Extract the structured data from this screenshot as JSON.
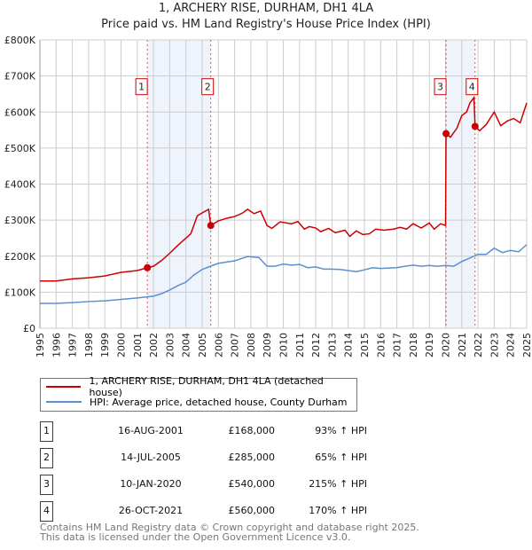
{
  "chart_data": {
    "type": "line",
    "title": "1, ARCHERY RISE, DURHAM, DH1 4LA",
    "subtitle": "Price paid vs. HM Land Registry's House Price Index (HPI)",
    "xlim": [
      1995,
      2025
    ],
    "ylim": [
      0,
      800000
    ],
    "y_ticks": [
      {
        "v": 0,
        "label": "£0"
      },
      {
        "v": 100000,
        "label": "£100K"
      },
      {
        "v": 200000,
        "label": "£200K"
      },
      {
        "v": 300000,
        "label": "£300K"
      },
      {
        "v": 400000,
        "label": "£400K"
      },
      {
        "v": 500000,
        "label": "£500K"
      },
      {
        "v": 600000,
        "label": "£600K"
      },
      {
        "v": 700000,
        "label": "£700K"
      },
      {
        "v": 800000,
        "label": "£800K"
      }
    ],
    "x_ticks": [
      "1995",
      "1996",
      "1997",
      "1998",
      "1999",
      "2000",
      "2001",
      "2002",
      "2003",
      "2004",
      "2005",
      "2006",
      "2007",
      "2008",
      "2009",
      "2010",
      "2011",
      "2012",
      "2013",
      "2014",
      "2015",
      "2016",
      "2017",
      "2018",
      "2019",
      "2020",
      "2021",
      "2022",
      "2023",
      "2024",
      "2025"
    ],
    "grid": true,
    "series": [
      {
        "name": "1, ARCHERY RISE, DURHAM, DH1 4LA (detached house)",
        "color": "#cc0000",
        "points": [
          [
            1995,
            131
          ],
          [
            1996,
            131
          ],
          [
            1997,
            137
          ],
          [
            1998,
            140
          ],
          [
            1999,
            145
          ],
          [
            2000,
            155
          ],
          [
            2001,
            160
          ],
          [
            2001.62,
            168
          ],
          [
            2002,
            172
          ],
          [
            2002.5,
            188
          ],
          [
            2003,
            208
          ],
          [
            2003.5,
            230
          ],
          [
            2004,
            250
          ],
          [
            2004.3,
            262
          ],
          [
            2004.7,
            312
          ],
          [
            2005,
            320
          ],
          [
            2005.4,
            330
          ],
          [
            2005.53,
            285
          ],
          [
            2006,
            298
          ],
          [
            2006.5,
            305
          ],
          [
            2007,
            310
          ],
          [
            2007.5,
            320
          ],
          [
            2007.8,
            330
          ],
          [
            2008.2,
            318
          ],
          [
            2008.6,
            325
          ],
          [
            2009,
            285
          ],
          [
            2009.3,
            277
          ],
          [
            2009.8,
            295
          ],
          [
            2010.5,
            290
          ],
          [
            2010.9,
            296
          ],
          [
            2011.3,
            275
          ],
          [
            2011.6,
            282
          ],
          [
            2012,
            278
          ],
          [
            2012.3,
            268
          ],
          [
            2012.8,
            277
          ],
          [
            2013.2,
            265
          ],
          [
            2013.8,
            272
          ],
          [
            2014.1,
            255
          ],
          [
            2014.5,
            270
          ],
          [
            2014.9,
            260
          ],
          [
            2015.3,
            262
          ],
          [
            2015.7,
            275
          ],
          [
            2016.2,
            272
          ],
          [
            2016.8,
            275
          ],
          [
            2017.2,
            280
          ],
          [
            2017.6,
            275
          ],
          [
            2018,
            290
          ],
          [
            2018.5,
            278
          ],
          [
            2019,
            292
          ],
          [
            2019.3,
            275
          ],
          [
            2019.7,
            290
          ],
          [
            2020,
            285
          ],
          [
            2020.03,
            540
          ],
          [
            2020.3,
            530
          ],
          [
            2020.7,
            555
          ],
          [
            2021,
            590
          ],
          [
            2021.3,
            600
          ],
          [
            2021.5,
            625
          ],
          [
            2021.75,
            640
          ],
          [
            2021.82,
            560
          ],
          [
            2022.1,
            548
          ],
          [
            2022.5,
            565
          ],
          [
            2023,
            600
          ],
          [
            2023.4,
            562
          ],
          [
            2023.8,
            575
          ],
          [
            2024.2,
            582
          ],
          [
            2024.6,
            570
          ],
          [
            2025,
            625
          ]
        ]
      },
      {
        "name": "HPI: Average price, detached house, County Durham",
        "color": "#5b8fd0",
        "points": [
          [
            1995,
            69
          ],
          [
            1996,
            69
          ],
          [
            1997,
            71
          ],
          [
            1998,
            74
          ],
          [
            1999,
            76
          ],
          [
            2000,
            80
          ],
          [
            2001,
            84
          ],
          [
            2001.6,
            87
          ],
          [
            2002,
            89
          ],
          [
            2002.5,
            96
          ],
          [
            2003,
            106
          ],
          [
            2003.5,
            118
          ],
          [
            2004,
            128
          ],
          [
            2004.5,
            148
          ],
          [
            2005,
            163
          ],
          [
            2005.5,
            172
          ],
          [
            2006,
            180
          ],
          [
            2007,
            187
          ],
          [
            2007.8,
            199
          ],
          [
            2008.5,
            196
          ],
          [
            2009,
            172
          ],
          [
            2009.5,
            172
          ],
          [
            2010,
            178
          ],
          [
            2010.5,
            175
          ],
          [
            2011,
            177
          ],
          [
            2011.5,
            168
          ],
          [
            2012,
            170
          ],
          [
            2012.5,
            164
          ],
          [
            2013,
            164
          ],
          [
            2013.5,
            163
          ],
          [
            2014,
            160
          ],
          [
            2014.5,
            157
          ],
          [
            2015,
            162
          ],
          [
            2015.5,
            168
          ],
          [
            2016,
            166
          ],
          [
            2016.5,
            167
          ],
          [
            2017,
            168
          ],
          [
            2017.5,
            172
          ],
          [
            2018,
            175
          ],
          [
            2018.5,
            172
          ],
          [
            2019,
            174
          ],
          [
            2019.5,
            172
          ],
          [
            2020,
            174
          ],
          [
            2020.5,
            172
          ],
          [
            2021,
            185
          ],
          [
            2021.5,
            195
          ],
          [
            2022,
            205
          ],
          [
            2022.5,
            205
          ],
          [
            2023,
            222
          ],
          [
            2023.5,
            210
          ],
          [
            2024,
            216
          ],
          [
            2024.5,
            212
          ],
          [
            2025,
            232
          ]
        ]
      }
    ],
    "y_units": "thousands GBP",
    "sales": [
      {
        "n": "1",
        "x": 2001.62,
        "y": 168
      },
      {
        "n": "2",
        "x": 2005.53,
        "y": 285
      },
      {
        "n": "3",
        "x": 2020.03,
        "y": 540
      },
      {
        "n": "4",
        "x": 2021.82,
        "y": 560
      }
    ],
    "shaded_ranges": [
      [
        2001.62,
        2005.53
      ],
      [
        2020.03,
        2021.82
      ]
    ],
    "legend_placement": "below"
  },
  "legend": {
    "property": "1, ARCHERY RISE, DURHAM, DH1 4LA (detached house)",
    "hpi": "HPI: Average price, detached house, County Durham"
  },
  "transactions": [
    {
      "n": "1",
      "date": "16-AUG-2001",
      "price": "£168,000",
      "hpi": "93% ↑ HPI"
    },
    {
      "n": "2",
      "date": "14-JUL-2005",
      "price": "£285,000",
      "hpi": "65% ↑ HPI"
    },
    {
      "n": "3",
      "date": "10-JAN-2020",
      "price": "£540,000",
      "hpi": "215% ↑ HPI"
    },
    {
      "n": "4",
      "date": "26-OCT-2021",
      "price": "£560,000",
      "hpi": "170% ↑ HPI"
    }
  ],
  "footer": {
    "line1": "Contains HM Land Registry data © Crown copyright and database right 2025.",
    "line2": "This data is licensed under the Open Government Licence v3.0."
  },
  "colors": {
    "red": "#cc0000",
    "blue": "#5b8fd0",
    "shade": "#eef3fc"
  }
}
